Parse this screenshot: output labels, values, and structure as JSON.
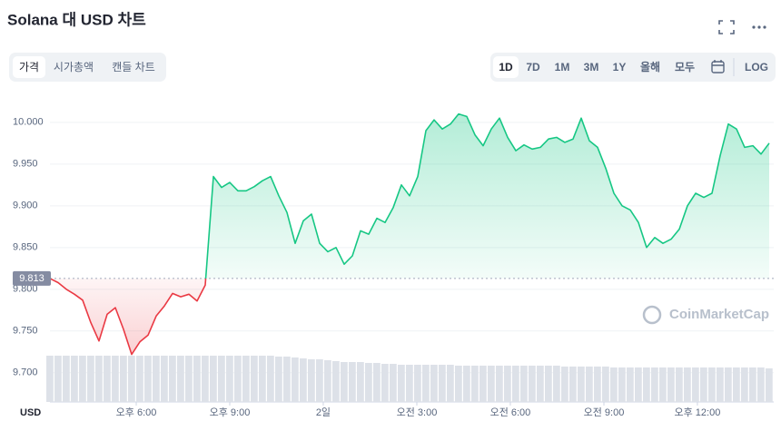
{
  "chart_data": {
    "type": "line",
    "title": "Solana 대 USD 차트",
    "y_label": "USD",
    "values": [
      9.813,
      9.808,
      9.8,
      9.794,
      9.787,
      9.76,
      9.738,
      9.77,
      9.778,
      9.752,
      9.722,
      9.737,
      9.745,
      9.768,
      9.78,
      9.795,
      9.791,
      9.794,
      9.786,
      9.805,
      9.935,
      9.922,
      9.928,
      9.918,
      9.918,
      9.923,
      9.93,
      9.935,
      9.912,
      9.892,
      9.855,
      9.882,
      9.89,
      9.855,
      9.845,
      9.85,
      9.83,
      9.84,
      9.87,
      9.866,
      9.885,
      9.88,
      9.898,
      9.925,
      9.912,
      9.935,
      9.99,
      10.003,
      9.992,
      9.998,
      10.01,
      10.007,
      9.985,
      9.972,
      9.992,
      10.005,
      9.982,
      9.966,
      9.973,
      9.968,
      9.97,
      9.98,
      9.982,
      9.976,
      9.98,
      10.005,
      9.978,
      9.97,
      9.945,
      9.915,
      9.9,
      9.895,
      9.88,
      9.85,
      9.862,
      9.855,
      9.86,
      9.872,
      9.9,
      9.915,
      9.91,
      9.915,
      9.96,
      9.998,
      9.992,
      9.97,
      9.972,
      9.962,
      9.975
    ],
    "volume": [
      51,
      51,
      51,
      51,
      51,
      51,
      51,
      51,
      51,
      51,
      51,
      51,
      51,
      51,
      51,
      51,
      51,
      51,
      51,
      51,
      51,
      51,
      51,
      51,
      51,
      51,
      51,
      51,
      50,
      50,
      49,
      48,
      47,
      47,
      46,
      45,
      44,
      44,
      44,
      43,
      43,
      42,
      42,
      41,
      41,
      41,
      41,
      41,
      41,
      41,
      40,
      40,
      40,
      40,
      40,
      40,
      40,
      40,
      40,
      40,
      40,
      40,
      40,
      39,
      39,
      39,
      39,
      39,
      39,
      38,
      38,
      38,
      38,
      38,
      38,
      38,
      38,
      38,
      38,
      38,
      38,
      38,
      38,
      38,
      38,
      38,
      38,
      38,
      37
    ],
    "baseline": 9.813,
    "up_color": "#16c784",
    "down_color": "#ea3943",
    "xlim": [
      0,
      88.56
    ],
    "xticks": [
      {
        "value": 10.56,
        "label": "오후 6:00"
      },
      {
        "value": 22.0,
        "label": "오후 9:00"
      },
      {
        "value": 33.44,
        "label": "2일"
      },
      {
        "value": 44.89,
        "label": "오전 3:00"
      },
      {
        "value": 56.33,
        "label": "오전 6:00"
      },
      {
        "value": 67.78,
        "label": "오전 9:00"
      },
      {
        "value": 79.22,
        "label": "오후 12:00"
      }
    ],
    "ylim": [
      9.665,
      10.027
    ],
    "yticks": [
      {
        "value": 9.7,
        "label": "9.700"
      },
      {
        "value": 9.75,
        "label": "9.750"
      },
      {
        "value": 9.8,
        "label": "9.800"
      },
      {
        "value": 9.85,
        "label": "9.850"
      },
      {
        "value": 9.9,
        "label": "9.900"
      },
      {
        "value": 9.95,
        "label": "9.950"
      },
      {
        "value": 10,
        "label": "10.000"
      }
    ],
    "grid": true
  },
  "tabs": [
    "가격",
    "시가총액",
    "캔들 차트"
  ],
  "ranges": [
    "1D",
    "7D",
    "1M",
    "3M",
    "1Y",
    "올해",
    "모두"
  ],
  "log_button": "LOG",
  "watermark": "CoinMarketCap"
}
